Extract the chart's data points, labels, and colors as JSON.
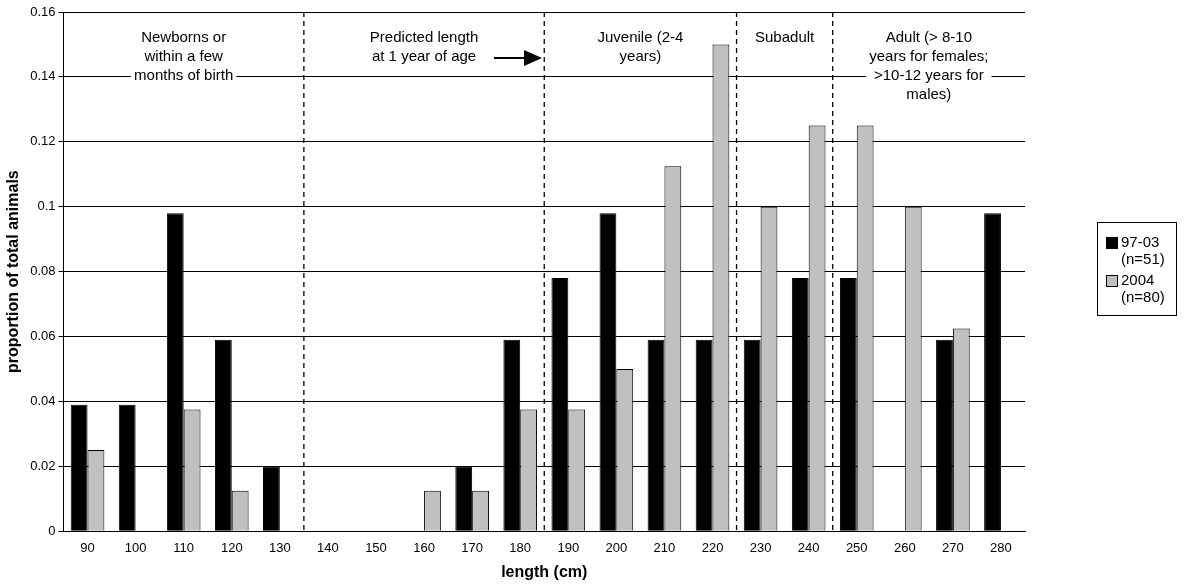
{
  "chart_data": {
    "type": "bar",
    "xlabel": "length (cm)",
    "ylabel": "proportion of total animals",
    "categories": [
      "90",
      "100",
      "110",
      "120",
      "130",
      "140",
      "150",
      "160",
      "170",
      "180",
      "190",
      "200",
      "210",
      "220",
      "230",
      "240",
      "250",
      "260",
      "270",
      "280"
    ],
    "series": [
      {
        "name": "97-03 (n=51)",
        "color": "#000000",
        "values": [
          0.039,
          0.039,
          0.098,
          0.059,
          0.02,
          0,
          0,
          0,
          0.02,
          0.059,
          0.078,
          0.098,
          0.059,
          0.059,
          0.059,
          0.078,
          0.078,
          0,
          0.059,
          0.098
        ]
      },
      {
        "name": "2004 (n=80)",
        "color": "#c0c0c0",
        "values": [
          0.025,
          0,
          0.0375,
          0.0125,
          0,
          0,
          0,
          0.0125,
          0.0125,
          0.0375,
          0.0375,
          0.05,
          0.1125,
          0.15,
          0.1,
          0.125,
          0.125,
          0.1,
          0.0625,
          0
        ]
      }
    ],
    "ylim": [
      0,
      0.16
    ],
    "yticks": [
      0,
      0.02,
      0.04,
      0.06,
      0.08,
      0.1,
      0.12,
      0.14,
      0.16
    ],
    "grid": "y",
    "legend": "right",
    "annotations": [
      "Newborns or within a few months of birth",
      "Predicted length at 1 year of age",
      "Juvenile (2-4 years)",
      "Subadult",
      "Adult (> 8-10 years for females; >10-12 years for males)"
    ]
  }
}
